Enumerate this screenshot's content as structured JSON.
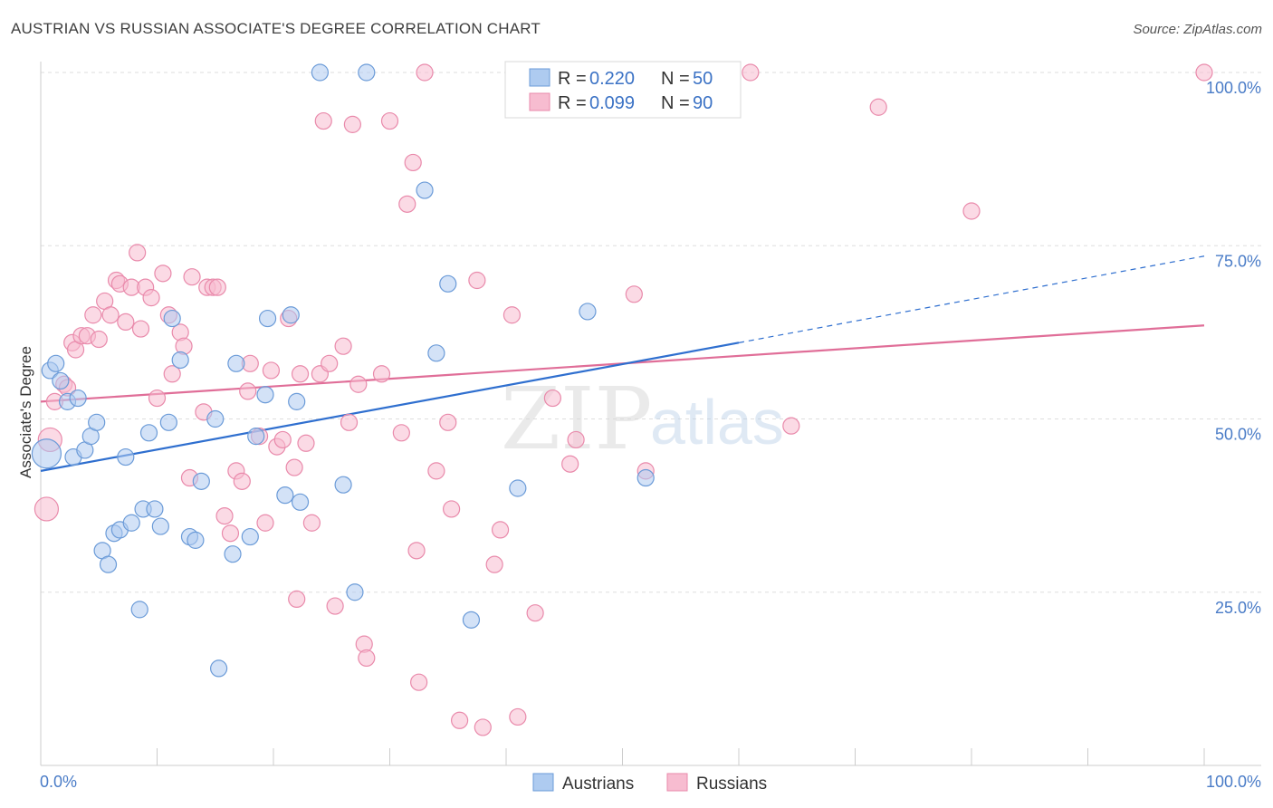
{
  "header": {
    "title": "AUSTRIAN VS RUSSIAN ASSOCIATE'S DEGREE CORRELATION CHART",
    "source": "Source: ZipAtlas.com"
  },
  "legend_top": {
    "austrians": {
      "r_label": "R =",
      "r_value": "0.220",
      "n_label": "N =",
      "n_value": "50"
    },
    "russians": {
      "r_label": "R =",
      "r_value": "0.099",
      "n_label": "N =",
      "n_value": "90"
    }
  },
  "legend_bottom": {
    "austrians": "Austrians",
    "russians": "Russians"
  },
  "watermark": {
    "zip": "ZIP",
    "atlas": "atlas"
  },
  "colors": {
    "austrians_fill": "#aecbf0",
    "austrians_stroke": "#6b9bd8",
    "austrians_line": "#2f6fcf",
    "russians_fill": "#f7bcd0",
    "russians_stroke": "#e98aab",
    "russians_line": "#e06e98",
    "tick_label": "#4a7cc7",
    "grid": "#dddddd"
  },
  "chart_data": {
    "type": "scatter",
    "title": "AUSTRIAN VS RUSSIAN ASSOCIATE'S DEGREE CORRELATION CHART",
    "xlabel": "",
    "ylabel": "Associate's Degree",
    "xlim": [
      0,
      100
    ],
    "ylim": [
      0,
      100
    ],
    "x_tick_labels": [
      "0.0%",
      "100.0%"
    ],
    "y_tick_labels": [
      "25.0%",
      "50.0%",
      "75.0%",
      "100.0%"
    ],
    "y_ticks": [
      25,
      50,
      75,
      100
    ],
    "grid": "horizontal dashed",
    "series": [
      {
        "name": "Austrians",
        "trend": {
          "x0": 0,
          "y0": 42.5,
          "x1": 60,
          "y1": 61,
          "dashed_to_x": 100,
          "dashed_to_y": 73.5
        },
        "points": [
          [
            0.5,
            45
          ],
          [
            0.8,
            57
          ],
          [
            1.3,
            58
          ],
          [
            1.7,
            55.5
          ],
          [
            2.3,
            52.5
          ],
          [
            3.2,
            53
          ],
          [
            2.8,
            44.5
          ],
          [
            3.8,
            45.5
          ],
          [
            4.3,
            47.5
          ],
          [
            4.8,
            49.5
          ],
          [
            5.3,
            31
          ],
          [
            5.8,
            29
          ],
          [
            6.3,
            33.5
          ],
          [
            6.8,
            34
          ],
          [
            7.3,
            44.5
          ],
          [
            7.8,
            35
          ],
          [
            8.8,
            37
          ],
          [
            9.3,
            48
          ],
          [
            9.8,
            37
          ],
          [
            10.3,
            34.5
          ],
          [
            11.0,
            49.5
          ],
          [
            11.3,
            64.5
          ],
          [
            12.0,
            58.5
          ],
          [
            12.8,
            33
          ],
          [
            13.3,
            32.5
          ],
          [
            13.8,
            41
          ],
          [
            15.0,
            50
          ],
          [
            15.3,
            14
          ],
          [
            16.5,
            30.5
          ],
          [
            16.8,
            58
          ],
          [
            18.0,
            33
          ],
          [
            18.5,
            47.5
          ],
          [
            19.3,
            53.5
          ],
          [
            19.5,
            64.5
          ],
          [
            21.0,
            39
          ],
          [
            21.5,
            65
          ],
          [
            22.0,
            52.5
          ],
          [
            22.3,
            38
          ],
          [
            24.0,
            100
          ],
          [
            26.0,
            40.5
          ],
          [
            27.0,
            25
          ],
          [
            28.0,
            100
          ],
          [
            33.0,
            83
          ],
          [
            34.0,
            59.5
          ],
          [
            35.0,
            69.5
          ],
          [
            37.0,
            21
          ],
          [
            41.0,
            40
          ],
          [
            47.0,
            65.5
          ],
          [
            52.0,
            41.5
          ],
          [
            8.5,
            22.5
          ]
        ]
      },
      {
        "name": "Russians",
        "trend": {
          "x0": 0,
          "y0": 52.5,
          "x1": 100,
          "y1": 63.5
        },
        "points": [
          [
            0.5,
            37
          ],
          [
            0.8,
            47
          ],
          [
            1.2,
            52.5
          ],
          [
            2.0,
            55
          ],
          [
            2.3,
            54.5
          ],
          [
            2.7,
            61
          ],
          [
            3.0,
            60
          ],
          [
            3.5,
            62
          ],
          [
            4.0,
            62
          ],
          [
            4.5,
            65
          ],
          [
            5.0,
            61.5
          ],
          [
            5.5,
            67
          ],
          [
            6.0,
            65
          ],
          [
            6.5,
            70
          ],
          [
            6.8,
            69.5
          ],
          [
            7.3,
            64
          ],
          [
            7.8,
            69
          ],
          [
            8.3,
            74
          ],
          [
            8.6,
            63
          ],
          [
            9.0,
            69
          ],
          [
            9.5,
            67.5
          ],
          [
            10.0,
            53
          ],
          [
            10.5,
            71
          ],
          [
            11.0,
            65
          ],
          [
            11.3,
            56.5
          ],
          [
            12.0,
            62.5
          ],
          [
            12.3,
            60.5
          ],
          [
            12.8,
            41.5
          ],
          [
            13.0,
            70.5
          ],
          [
            14.0,
            51
          ],
          [
            14.3,
            69
          ],
          [
            14.8,
            69
          ],
          [
            15.2,
            69
          ],
          [
            15.8,
            36
          ],
          [
            16.3,
            33.5
          ],
          [
            16.8,
            42.5
          ],
          [
            17.3,
            41
          ],
          [
            17.8,
            54
          ],
          [
            18.0,
            58
          ],
          [
            18.8,
            47.5
          ],
          [
            19.3,
            35
          ],
          [
            19.8,
            57
          ],
          [
            20.3,
            46
          ],
          [
            20.8,
            47
          ],
          [
            21.3,
            64.5
          ],
          [
            21.8,
            43
          ],
          [
            22.0,
            24
          ],
          [
            22.3,
            56.5
          ],
          [
            22.8,
            46.5
          ],
          [
            23.3,
            35
          ],
          [
            24.0,
            56.5
          ],
          [
            24.3,
            93
          ],
          [
            24.8,
            58
          ],
          [
            25.3,
            23
          ],
          [
            26.0,
            60.5
          ],
          [
            26.5,
            49.5
          ],
          [
            26.8,
            92.5
          ],
          [
            27.3,
            55
          ],
          [
            27.8,
            17.5
          ],
          [
            28.0,
            15.5
          ],
          [
            29.3,
            56.5
          ],
          [
            30.0,
            93
          ],
          [
            31.0,
            48
          ],
          [
            31.5,
            81
          ],
          [
            32.0,
            87
          ],
          [
            32.3,
            31
          ],
          [
            32.5,
            12
          ],
          [
            33.0,
            100
          ],
          [
            34.0,
            42.5
          ],
          [
            35.0,
            49.5
          ],
          [
            35.3,
            37
          ],
          [
            36.0,
            6.5
          ],
          [
            37.5,
            70
          ],
          [
            38.0,
            5.5
          ],
          [
            39.0,
            29
          ],
          [
            39.5,
            34
          ],
          [
            40.5,
            65
          ],
          [
            41.0,
            7
          ],
          [
            42.5,
            22
          ],
          [
            44.0,
            53
          ],
          [
            45.5,
            43.5
          ],
          [
            46.0,
            47
          ],
          [
            51.0,
            68
          ],
          [
            52.0,
            42.5
          ],
          [
            59.0,
            100
          ],
          [
            61.0,
            100
          ],
          [
            64.5,
            49
          ],
          [
            72.0,
            95
          ],
          [
            80.0,
            80
          ],
          [
            100.0,
            100
          ]
        ]
      }
    ]
  }
}
